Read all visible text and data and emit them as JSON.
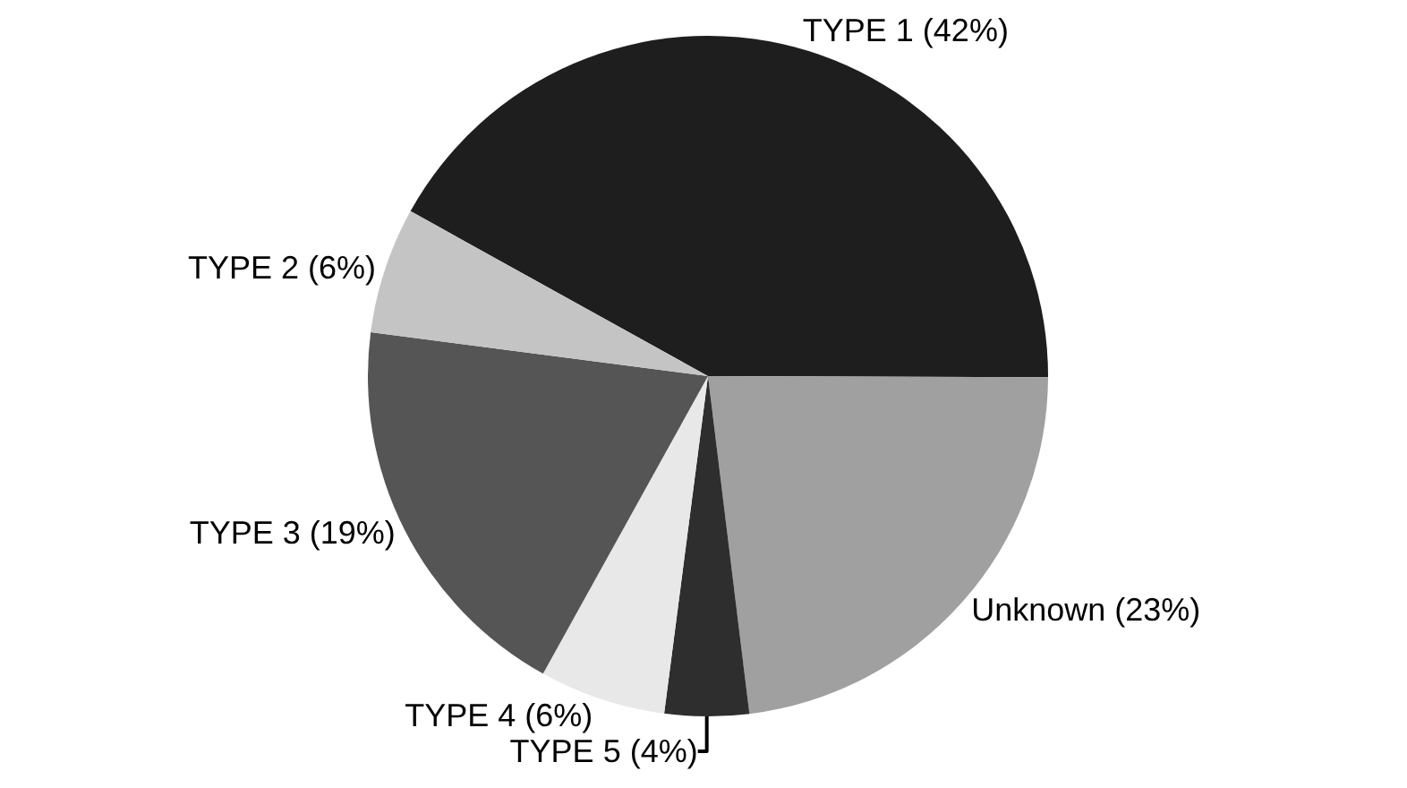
{
  "chart_data": {
    "type": "pie",
    "categories": [
      "TYPE 1 (42%)",
      "Unknown (23%)",
      "TYPE 5 (4%)",
      "TYPE 4 (6%)",
      "TYPE 3 (19%)",
      "TYPE 2 (6%)"
    ],
    "values": [
      42,
      23,
      4,
      6,
      19,
      6
    ],
    "colors": [
      "#1e1e1e",
      "#a0a0a0",
      "#2e2e2e",
      "#e8e8e8",
      "#555555",
      "#c4c4c4"
    ],
    "legend": false
  }
}
